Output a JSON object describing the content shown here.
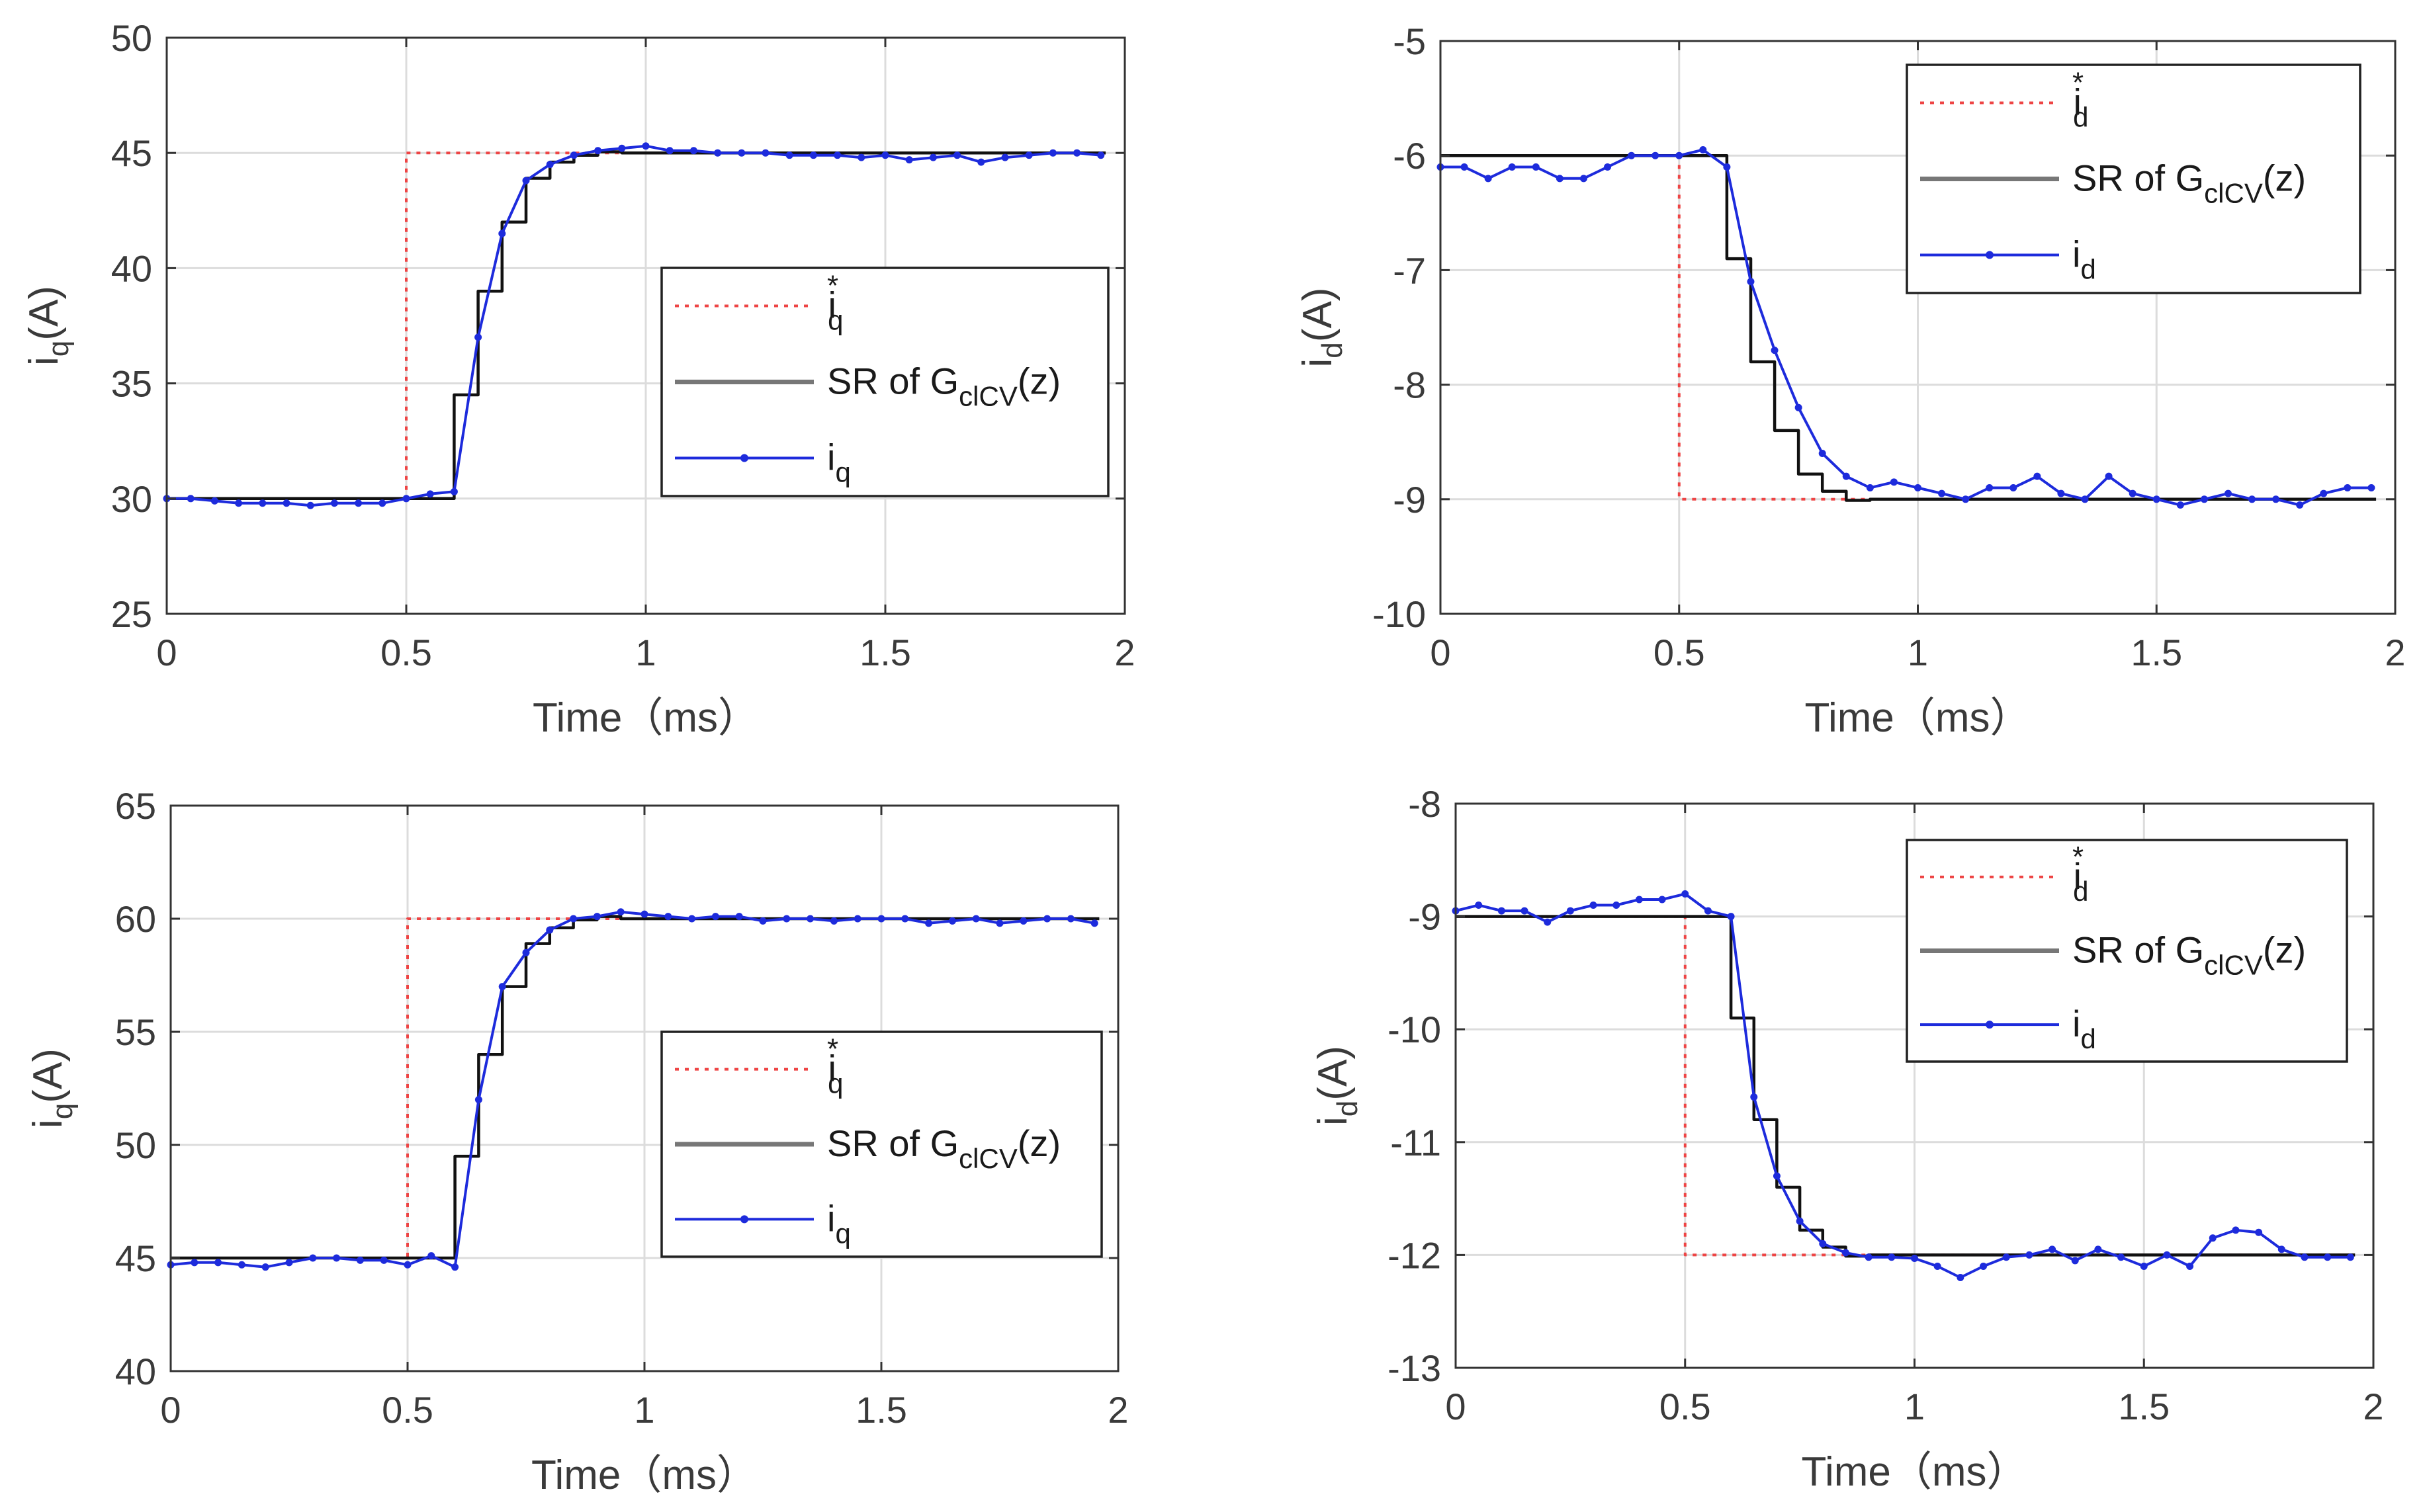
{
  "figure": {
    "panels": 4
  },
  "chart_data": [
    {
      "id": "p1",
      "type": "line",
      "xlabel": "Time（ms）",
      "ylabel": "i_q(A)",
      "ylabel_main": "i",
      "ylabel_sub": "q",
      "ylabel_unit": "(A)",
      "xlim": [
        0,
        2
      ],
      "ylim": [
        25,
        50
      ],
      "xticks": [
        "0",
        "0.5",
        "1",
        "1.5",
        "2"
      ],
      "xtick_values": [
        0,
        0.5,
        1,
        1.5,
        2
      ],
      "yticks": [
        "25",
        "30",
        "35",
        "40",
        "45",
        "50"
      ],
      "ytick_values": [
        25,
        30,
        35,
        40,
        45,
        50
      ],
      "grid": true,
      "legend": {
        "position": "center-right",
        "entries": [
          {
            "main": "i",
            "sub": "q",
            "sup": "*",
            "style": "ref"
          },
          {
            "main": "SR of G",
            "sub": "clCV",
            "after": "(z)",
            "style": "sr"
          },
          {
            "main": "i",
            "sub": "q",
            "style": "meas"
          }
        ]
      },
      "series": [
        {
          "name": "i_q*",
          "style": "ref",
          "x": [
            0,
            0.5,
            0.5,
            1.96
          ],
          "y": [
            30,
            30,
            45,
            45
          ]
        },
        {
          "name": "SR of G_clCV(z)",
          "style": "sr",
          "x": [
            0,
            0.6,
            0.6,
            0.65,
            0.65,
            0.7,
            0.7,
            0.75,
            0.75,
            0.8,
            0.8,
            0.85,
            0.85,
            0.9,
            0.9,
            0.95,
            0.95,
            1.96
          ],
          "y": [
            30,
            30,
            34.5,
            34.5,
            39,
            39,
            42,
            42,
            43.9,
            43.9,
            44.6,
            44.6,
            44.9,
            44.9,
            45.05,
            45.05,
            45,
            45
          ]
        },
        {
          "name": "i_q",
          "style": "meas",
          "x": [
            0,
            0.05,
            0.1,
            0.15,
            0.2,
            0.25,
            0.3,
            0.35,
            0.4,
            0.45,
            0.5,
            0.55,
            0.6,
            0.65,
            0.7,
            0.75,
            0.8,
            0.85,
            0.9,
            0.95,
            1.0,
            1.05,
            1.1,
            1.15,
            1.2,
            1.25,
            1.3,
            1.35,
            1.4,
            1.45,
            1.5,
            1.55,
            1.6,
            1.65,
            1.7,
            1.75,
            1.8,
            1.85,
            1.9,
            1.95
          ],
          "y": [
            30,
            30,
            29.9,
            29.8,
            29.8,
            29.8,
            29.7,
            29.8,
            29.8,
            29.8,
            30,
            30.2,
            30.3,
            37,
            41.5,
            43.8,
            44.5,
            44.9,
            45.1,
            45.2,
            45.3,
            45.1,
            45.1,
            45,
            45,
            45,
            44.9,
            44.9,
            44.9,
            44.8,
            44.9,
            44.7,
            44.8,
            44.9,
            44.6,
            44.8,
            44.9,
            45,
            45,
            44.9
          ]
        }
      ]
    },
    {
      "id": "p2",
      "type": "line",
      "xlabel": "Time（ms）",
      "ylabel": "i_d(A)",
      "ylabel_main": "i",
      "ylabel_sub": "d",
      "ylabel_unit": "(A)",
      "xlim": [
        0,
        2
      ],
      "ylim": [
        -10,
        -5
      ],
      "xticks": [
        "0",
        "0.5",
        "1",
        "1.5",
        "2"
      ],
      "xtick_values": [
        0,
        0.5,
        1,
        1.5,
        2
      ],
      "yticks": [
        "-10",
        "-9",
        "-8",
        "-7",
        "-6",
        "-5"
      ],
      "ytick_values": [
        -10,
        -9,
        -8,
        -7,
        -6,
        -5
      ],
      "grid": true,
      "legend": {
        "position": "top-right",
        "entries": [
          {
            "main": "i",
            "sub": "d",
            "sup": "*",
            "style": "ref"
          },
          {
            "main": "SR of G",
            "sub": "clCV",
            "after": "(z)",
            "style": "sr"
          },
          {
            "main": "i",
            "sub": "d",
            "style": "meas"
          }
        ]
      },
      "series": [
        {
          "name": "i_d*",
          "style": "ref",
          "x": [
            0,
            0.5,
            0.5,
            1.96
          ],
          "y": [
            -6,
            -6,
            -9,
            -9
          ]
        },
        {
          "name": "SR of G_clCV(z)",
          "style": "sr",
          "x": [
            0,
            0.6,
            0.6,
            0.65,
            0.65,
            0.7,
            0.7,
            0.75,
            0.75,
            0.8,
            0.8,
            0.85,
            0.85,
            0.9,
            0.9,
            1.96
          ],
          "y": [
            -6,
            -6,
            -6.9,
            -6.9,
            -7.8,
            -7.8,
            -8.4,
            -8.4,
            -8.78,
            -8.78,
            -8.93,
            -8.93,
            -9.01,
            -9.01,
            -9,
            -9
          ]
        },
        {
          "name": "i_d",
          "style": "meas",
          "x": [
            0,
            0.05,
            0.1,
            0.15,
            0.2,
            0.25,
            0.3,
            0.35,
            0.4,
            0.45,
            0.5,
            0.55,
            0.6,
            0.65,
            0.7,
            0.75,
            0.8,
            0.85,
            0.9,
            0.95,
            1.0,
            1.05,
            1.1,
            1.15,
            1.2,
            1.25,
            1.3,
            1.35,
            1.4,
            1.45,
            1.5,
            1.55,
            1.6,
            1.65,
            1.7,
            1.75,
            1.8,
            1.85,
            1.9,
            1.95
          ],
          "y": [
            -6.1,
            -6.1,
            -6.2,
            -6.1,
            -6.1,
            -6.2,
            -6.2,
            -6.1,
            -6,
            -6,
            -6,
            -5.95,
            -6.1,
            -7.1,
            -7.7,
            -8.2,
            -8.6,
            -8.8,
            -8.9,
            -8.85,
            -8.9,
            -8.95,
            -9,
            -8.9,
            -8.9,
            -8.8,
            -8.95,
            -9,
            -8.8,
            -8.95,
            -9,
            -9.05,
            -9,
            -8.95,
            -9,
            -9,
            -9.05,
            -8.95,
            -8.9,
            -8.9
          ]
        }
      ]
    },
    {
      "id": "p3",
      "type": "line",
      "xlabel": "Time（ms）",
      "ylabel": "i_q(A)",
      "ylabel_main": "i",
      "ylabel_sub": "q",
      "ylabel_unit": "(A)",
      "xlim": [
        0,
        2
      ],
      "ylim": [
        40,
        65
      ],
      "xticks": [
        "0",
        "0.5",
        "1",
        "1.5",
        "2"
      ],
      "xtick_values": [
        0,
        0.5,
        1,
        1.5,
        2
      ],
      "yticks": [
        "40",
        "45",
        "50",
        "55",
        "60",
        "65"
      ],
      "ytick_values": [
        40,
        45,
        50,
        55,
        60,
        65
      ],
      "grid": true,
      "legend": {
        "position": "center-right",
        "entries": [
          {
            "main": "i",
            "sub": "q",
            "sup": "*",
            "style": "ref"
          },
          {
            "main": "SR of G",
            "sub": "clCV",
            "after": "(z)",
            "style": "sr"
          },
          {
            "main": "i",
            "sub": "q",
            "style": "meas"
          }
        ]
      },
      "series": [
        {
          "name": "i_q*",
          "style": "ref",
          "x": [
            0,
            0.5,
            0.5,
            1.96
          ],
          "y": [
            45,
            45,
            60,
            60
          ]
        },
        {
          "name": "SR of G_clCV(z)",
          "style": "sr",
          "x": [
            0,
            0.6,
            0.6,
            0.65,
            0.65,
            0.7,
            0.7,
            0.75,
            0.75,
            0.8,
            0.8,
            0.85,
            0.85,
            0.9,
            0.9,
            0.95,
            0.95,
            1.96
          ],
          "y": [
            45,
            45,
            49.5,
            49.5,
            54,
            54,
            57,
            57,
            58.9,
            58.9,
            59.6,
            59.6,
            59.95,
            59.95,
            60.1,
            60.1,
            60,
            60
          ]
        },
        {
          "name": "i_q",
          "style": "meas",
          "x": [
            0,
            0.05,
            0.1,
            0.15,
            0.2,
            0.25,
            0.3,
            0.35,
            0.4,
            0.45,
            0.5,
            0.55,
            0.6,
            0.65,
            0.7,
            0.75,
            0.8,
            0.85,
            0.9,
            0.95,
            1.0,
            1.05,
            1.1,
            1.15,
            1.2,
            1.25,
            1.3,
            1.35,
            1.4,
            1.45,
            1.5,
            1.55,
            1.6,
            1.65,
            1.7,
            1.75,
            1.8,
            1.85,
            1.9,
            1.95
          ],
          "y": [
            44.7,
            44.8,
            44.8,
            44.7,
            44.6,
            44.8,
            45,
            45,
            44.9,
            44.9,
            44.7,
            45.1,
            44.6,
            52,
            57,
            58.5,
            59.5,
            60,
            60.1,
            60.3,
            60.2,
            60.1,
            60,
            60.1,
            60.1,
            59.9,
            60,
            60,
            59.9,
            60,
            60,
            60,
            59.8,
            59.9,
            60,
            59.8,
            59.9,
            60,
            60,
            59.8
          ]
        }
      ]
    },
    {
      "id": "p4",
      "type": "line",
      "xlabel": "Time（ms）",
      "ylabel": "i_d(A)",
      "ylabel_main": "i",
      "ylabel_sub": "d",
      "ylabel_unit": "(A)",
      "xlim": [
        0,
        2
      ],
      "ylim": [
        -13,
        -8
      ],
      "xticks": [
        "0",
        "0.5",
        "1",
        "1.5",
        "2"
      ],
      "xtick_values": [
        0,
        0.5,
        1,
        1.5,
        2
      ],
      "yticks": [
        "-13",
        "-12",
        "-11",
        "-10",
        "-9",
        "-8"
      ],
      "ytick_values": [
        -13,
        -12,
        -11,
        -10,
        -9,
        -8
      ],
      "grid": true,
      "legend": {
        "position": "top-right",
        "entries": [
          {
            "main": "i",
            "sub": "d",
            "sup": "*",
            "style": "ref"
          },
          {
            "main": "SR of G",
            "sub": "clCV",
            "after": "(z)",
            "style": "sr"
          },
          {
            "main": "i",
            "sub": "d",
            "style": "meas"
          }
        ]
      },
      "series": [
        {
          "name": "i_d*",
          "style": "ref",
          "x": [
            0,
            0.5,
            0.5,
            1.96
          ],
          "y": [
            -9,
            -9,
            -12,
            -12
          ]
        },
        {
          "name": "SR of G_clCV(z)",
          "style": "sr",
          "x": [
            0,
            0.6,
            0.6,
            0.65,
            0.65,
            0.7,
            0.7,
            0.75,
            0.75,
            0.8,
            0.8,
            0.85,
            0.85,
            0.9,
            0.9,
            1.96
          ],
          "y": [
            -9,
            -9,
            -9.9,
            -9.9,
            -10.8,
            -10.8,
            -11.4,
            -11.4,
            -11.78,
            -11.78,
            -11.93,
            -11.93,
            -12.01,
            -12.01,
            -12,
            -12
          ]
        },
        {
          "name": "i_d",
          "style": "meas",
          "x": [
            0,
            0.05,
            0.1,
            0.15,
            0.2,
            0.25,
            0.3,
            0.35,
            0.4,
            0.45,
            0.5,
            0.55,
            0.6,
            0.65,
            0.7,
            0.75,
            0.8,
            0.85,
            0.9,
            0.95,
            1.0,
            1.05,
            1.1,
            1.15,
            1.2,
            1.25,
            1.3,
            1.35,
            1.4,
            1.45,
            1.5,
            1.55,
            1.6,
            1.65,
            1.7,
            1.75,
            1.8,
            1.85,
            1.9,
            1.95
          ],
          "y": [
            -8.95,
            -8.9,
            -8.95,
            -8.95,
            -9.05,
            -8.95,
            -8.9,
            -8.9,
            -8.85,
            -8.85,
            -8.8,
            -8.95,
            -9,
            -10.6,
            -11.3,
            -11.7,
            -11.9,
            -11.98,
            -12.02,
            -12.02,
            -12.03,
            -12.1,
            -12.2,
            -12.1,
            -12.02,
            -12,
            -11.95,
            -12.05,
            -11.95,
            -12.02,
            -12.1,
            -12,
            -12.1,
            -11.85,
            -11.78,
            -11.8,
            -11.95,
            -12.02,
            -12.02,
            -12.02
          ]
        }
      ]
    }
  ]
}
